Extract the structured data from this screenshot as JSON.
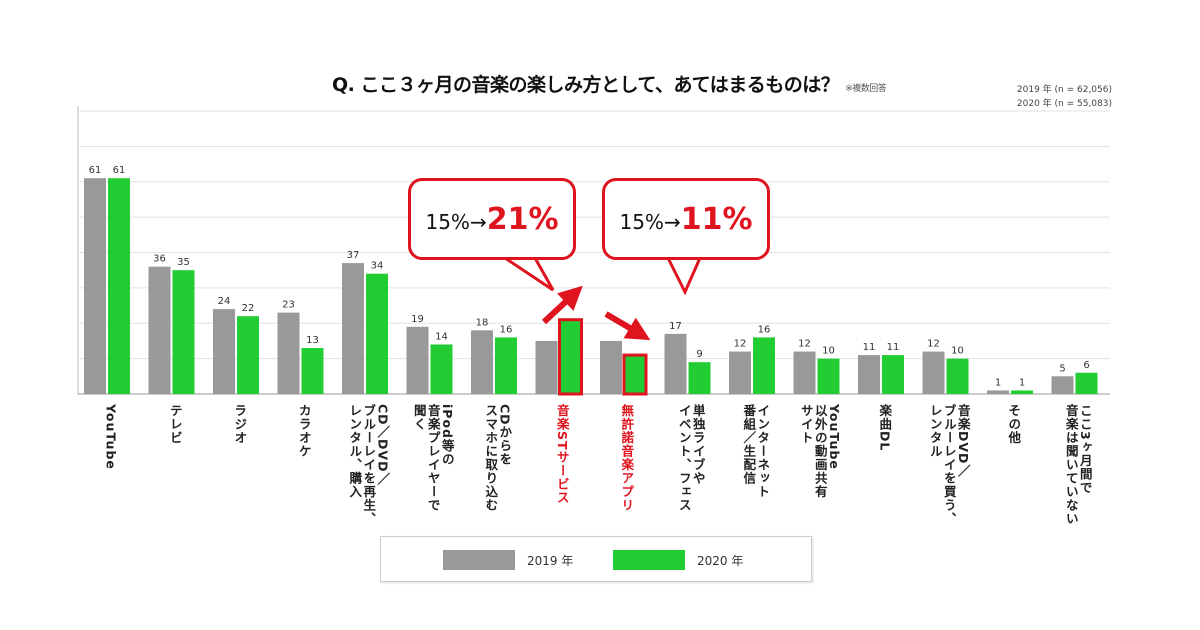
{
  "chart_data": {
    "type": "bar",
    "title": "Q. ここ３ヶ月の音楽の楽しみ方として、あてはまるものは？",
    "note": "※複数回答",
    "sample_sizes": [
      "2019 年 (n = 62,056)",
      "2020 年 (n = 55,083)"
    ],
    "categories": [
      "YouTube",
      "テレビ",
      "ラジオ",
      "カラオケ",
      "CD／DVD／\nブルーレイを再生、\nレンタル、購入",
      "iPod等の\n音楽プレイヤーで\n聞く",
      "CDからを\nスマホに取り込む",
      "音楽STサービス",
      "無許諾音楽アプリ",
      "単独ライブや\nイベント、フェス",
      "インターネット\n番組／生配信",
      "YouTube\n以外の動画共有\nサイト",
      "楽曲DL",
      "音楽DVD／\nブルーレイを買う、\nレンタル",
      "その他",
      "ここ3ヶ月間で\n音楽は聞いていない"
    ],
    "highlighted": [
      7,
      8
    ],
    "series": [
      {
        "name": "2019 年",
        "color": "#999999",
        "values": [
          61,
          36,
          24,
          23,
          37,
          19,
          18,
          15,
          15,
          17,
          12,
          12,
          11,
          12,
          1,
          5
        ]
      },
      {
        "name": "2020 年",
        "color": "#22cc33",
        "values": [
          61,
          35,
          22,
          13,
          34,
          14,
          16,
          21,
          11,
          9,
          16,
          10,
          11,
          10,
          1,
          6
        ]
      }
    ],
    "ylim": [
      0,
      80
    ],
    "grid": true,
    "legend_position": "bottom",
    "annotations": [
      {
        "from": "15%",
        "arrow": "→",
        "to": "21%",
        "category": "音楽STサービス"
      },
      {
        "from": "15%",
        "arrow": "→",
        "to": "11%",
        "category": "無許諾音楽アプリ"
      }
    ]
  }
}
